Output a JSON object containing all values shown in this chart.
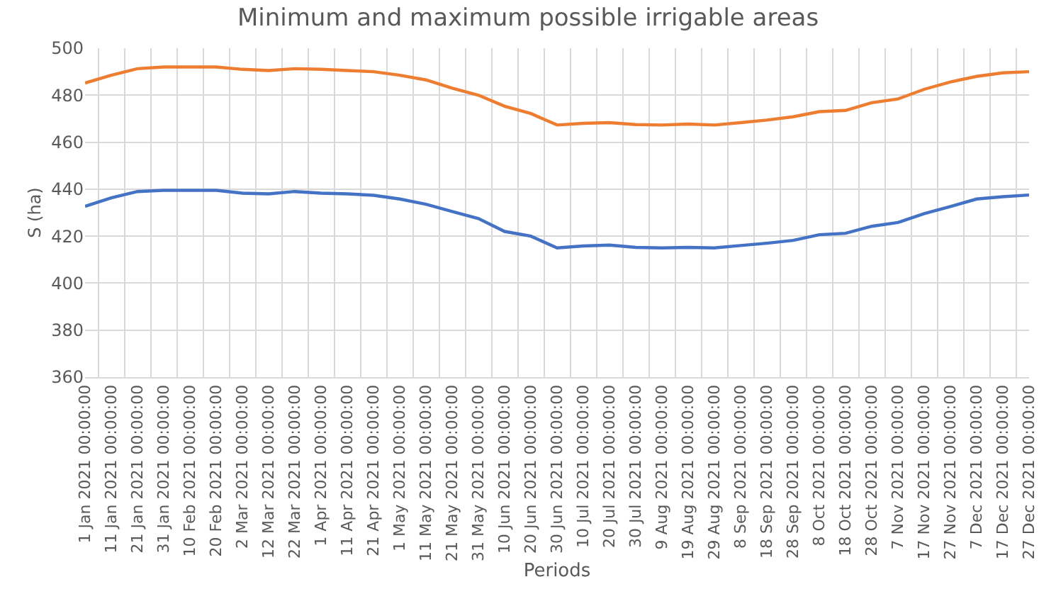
{
  "chart_data": {
    "type": "line",
    "title": "Minimum and maximum possible irrigable areas",
    "xlabel": "Periods",
    "ylabel": "S (ha)",
    "categories": [
      "1 Jan 2021 00:00:00",
      "11 Jan 2021 00:00:00",
      "21 Jan 2021 00:00:00",
      "31 Jan 2021 00:00:00",
      "10 Feb 2021 00:00:00",
      "20 Feb 2021 00:00:00",
      "2 Mar 2021 00:00:00",
      "12 Mar 2021 00:00:00",
      "22 Mar 2021 00:00:00",
      "1 Apr 2021 00:00:00",
      "11 Apr 2021 00:00:00",
      "21 Apr 2021 00:00:00",
      "1 May 2021 00:00:00",
      "11 May 2021 00:00:00",
      "21 May 2021 00:00:00",
      "31 May 2021 00:00:00",
      "10 Jun 2021 00:00:00",
      "20 Jun 2021 00:00:00",
      "30 Jun 2021 00:00:00",
      "10 Jul 2021 00:00:00",
      "20 Jul 2021 00:00:00",
      "30 Jul 2021 00:00:00",
      "9 Aug 2021 00:00:00",
      "19 Aug 2021 00:00:00",
      "29 Aug 2021 00:00:00",
      "8 Sep 2021 00:00:00",
      "18 Sep 2021 00:00:00",
      "28 Sep 2021 00:00:00",
      "8 Oct 2021 00:00:00",
      "18 Oct 2021 00:00:00",
      "28 Oct 2021 00:00:00",
      "7 Nov 2021 00:00:00",
      "17 Nov 2021 00:00:00",
      "27 Nov 2021 00:00:00",
      "7 Dec 2021 00:00:00",
      "17 Dec 2021 00:00:00",
      "27 Dec 2021 00:00:00"
    ],
    "series": [
      {
        "color": "#4472c4",
        "values": [
          432.7,
          436.3,
          439,
          439.5,
          439.5,
          439.5,
          438.3,
          438,
          439,
          438.3,
          438,
          437.4,
          435.8,
          433.6,
          430.5,
          427.5,
          422,
          420,
          415,
          415.8,
          416.2,
          415.2,
          415,
          415.2,
          415,
          416,
          417,
          418.2,
          420.6,
          421.2,
          424.2,
          425.8,
          429.6,
          432.6,
          435.8,
          436.8,
          437.5
        ]
      },
      {
        "color": "#ed7d31",
        "values": [
          485.2,
          488.5,
          491.3,
          492,
          492,
          492,
          491,
          490.5,
          491.3,
          491,
          490.5,
          490,
          488.5,
          486.5,
          483,
          480,
          475.3,
          472.2,
          467.3,
          468,
          468.3,
          467.5,
          467.3,
          467.7,
          467.3,
          468.3,
          469.4,
          470.8,
          473,
          473.5,
          476.8,
          478.4,
          482.5,
          485.6,
          488,
          489.5,
          490
        ]
      }
    ],
    "ylim": [
      360,
      500
    ],
    "yticks": [
      360,
      380,
      400,
      420,
      440,
      460,
      480,
      500
    ],
    "grid": true
  }
}
